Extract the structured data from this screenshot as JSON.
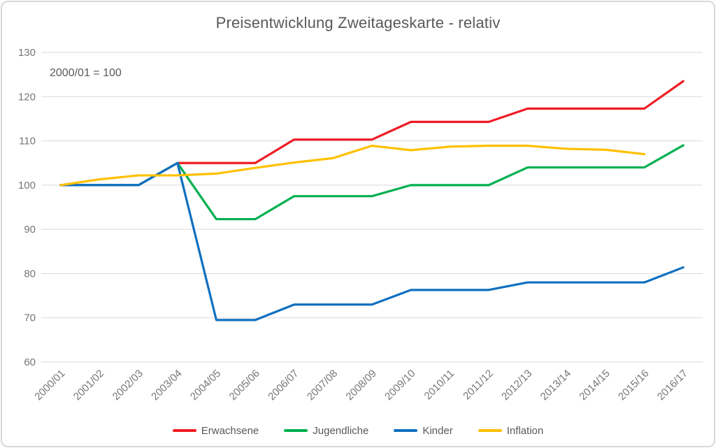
{
  "window": {
    "background": "#ffffff",
    "border_color": "#d8d8d8"
  },
  "chart_data": {
    "type": "line",
    "title": "Preisentwicklung Zweitageskarte - relativ",
    "annotation": "2000/01 = 100",
    "categories": [
      "2000/01",
      "2001/02",
      "2002/03",
      "2003/04",
      "2004/05",
      "2005/06",
      "2006/07",
      "2007/08",
      "2008/09",
      "2009/10",
      "2010/11",
      "2011/12",
      "2012/13",
      "2013/14",
      "2014/15",
      "2015/16",
      "2016/17"
    ],
    "series": [
      {
        "name": "Erwachsene",
        "color": "#ee1c25",
        "values": [
          100,
          100,
          100,
          105,
          105,
          105,
          110.3,
          110.3,
          110.3,
          114.3,
          114.3,
          114.3,
          117.3,
          117.3,
          117.3,
          117.3,
          123.5
        ]
      },
      {
        "name": "Jugendliche",
        "color": "#00b050",
        "values": [
          100,
          100,
          100,
          105,
          92.3,
          92.3,
          97.5,
          97.5,
          97.5,
          100,
          100,
          100,
          104,
          104,
          104,
          104,
          109
        ]
      },
      {
        "name": "Kinder",
        "color": "#0f70c0",
        "values": [
          100,
          100,
          100,
          105,
          69.5,
          69.5,
          73,
          73,
          73,
          76.3,
          76.3,
          76.3,
          78,
          78,
          78,
          78,
          81.4
        ]
      },
      {
        "name": "Inflation",
        "color": "#ffc000",
        "values": [
          100,
          101.3,
          102.2,
          102.2,
          102.6,
          103.9,
          105.1,
          106.1,
          108.9,
          107.9,
          108.7,
          108.9,
          108.9,
          108.2,
          108,
          107,
          null
        ]
      }
    ],
    "ylim": [
      60,
      130
    ],
    "y_ticks": [
      130,
      120,
      110,
      100,
      90,
      80,
      70,
      60
    ],
    "xlabel": "",
    "ylabel": "",
    "grid": true,
    "legend_position": "bottom",
    "title_color": "#595959",
    "axis_label_color": "#767676",
    "gridline_color": "#d9d9d9"
  }
}
